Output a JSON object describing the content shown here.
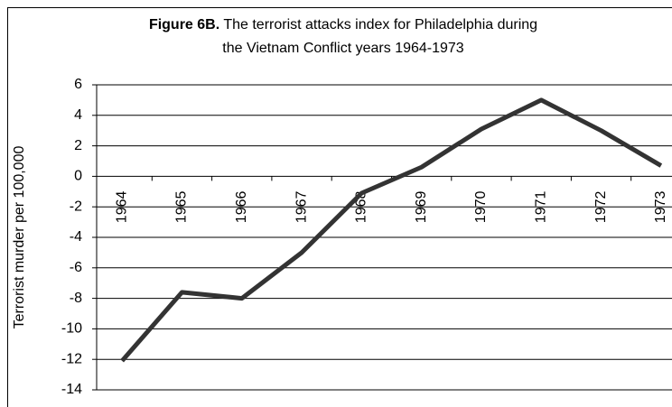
{
  "chart_data": {
    "type": "line",
    "title_label": "Figure 6B.",
    "title": [
      "The terrorist attacks index for Philadelphia during",
      "the Vietnam Conflict years 1964-1973"
    ],
    "y_label": "Terrorist murder per 100,000",
    "categories": [
      "1964",
      "1965",
      "1966",
      "1967",
      "1968",
      "1969",
      "1970",
      "1971",
      "1972",
      "1973"
    ],
    "values": [
      -12.1,
      -7.6,
      -8.0,
      -5.0,
      -1.1,
      0.6,
      3.1,
      5.0,
      3.0,
      0.7
    ],
    "color": "#333333",
    "ylim": [
      -14,
      6
    ],
    "yticks": [
      -14,
      -12,
      -10,
      -8,
      -6,
      -4,
      -2,
      0,
      2,
      4,
      6
    ],
    "grid": true
  }
}
